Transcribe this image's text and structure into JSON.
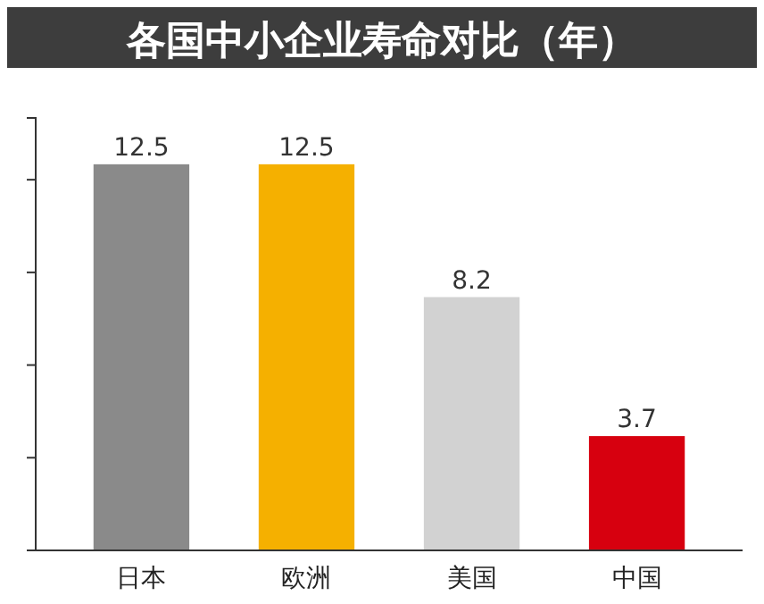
{
  "chart_data": {
    "type": "bar",
    "title": "各国中小企业寿命对比（年）",
    "categories": [
      "日本",
      "欧洲",
      "美国",
      "中国"
    ],
    "values": [
      12.5,
      12.5,
      8.2,
      3.7
    ],
    "colors": [
      "#8a8a8a",
      "#f5b000",
      "#d2d2d2",
      "#d7000f"
    ],
    "ylim": [
      0,
      14
    ],
    "yticks": [
      {
        "value": 3,
        "label": null
      },
      {
        "value": 6,
        "label": null
      },
      {
        "value": 9,
        "label": null
      },
      {
        "value": 12,
        "label": null
      }
    ],
    "data_labels": true,
    "grid": false
  }
}
